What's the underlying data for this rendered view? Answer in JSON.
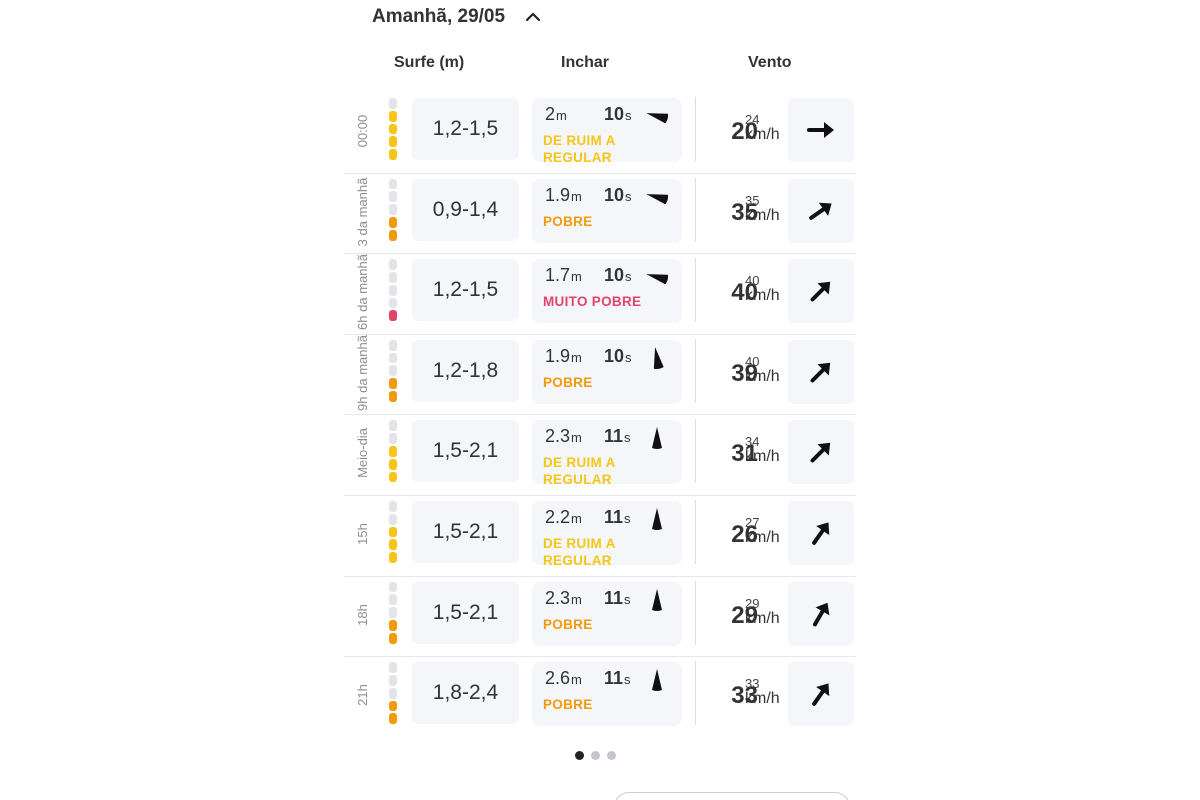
{
  "day_header": {
    "title": "Amanhã, 29/05"
  },
  "columns": {
    "surf": "Surfe (m)",
    "swell": "Inchar",
    "wind": "Vento"
  },
  "colors": {
    "fair": "#f5c518",
    "poor": "#f29a0d",
    "very_poor": "#e0456b",
    "empty": "#e2e4ea"
  },
  "rows": [
    {
      "time": "00:00",
      "meter": [
        "empty",
        "fair",
        "fair",
        "fair",
        "fair"
      ],
      "surf": "1,2-1,5",
      "swell_height": "2",
      "swell_unit": "m",
      "swell_period": "10",
      "period_unit": "s",
      "swell_dir_deg": 285,
      "quality": "DE RUIM A REGULAR",
      "quality_level": "fair",
      "wind": "20",
      "gust": "24",
      "wind_unit": "km/h",
      "wind_dir_deg": 90
    },
    {
      "time": "3 da manhã",
      "meter": [
        "empty",
        "empty",
        "empty",
        "poor",
        "poor"
      ],
      "surf": "0,9-1,4",
      "swell_height": "1.9",
      "swell_unit": "m",
      "swell_period": "10",
      "period_unit": "s",
      "swell_dir_deg": 285,
      "quality": "POBRE",
      "quality_level": "poor",
      "wind": "35",
      "gust": "35",
      "wind_unit": "km/h",
      "wind_dir_deg": 55
    },
    {
      "time": "6h da manhã",
      "meter": [
        "empty",
        "empty",
        "empty",
        "empty",
        "very_poor"
      ],
      "surf": "1,2-1,5",
      "swell_height": "1.7",
      "swell_unit": "m",
      "swell_period": "10",
      "period_unit": "s",
      "swell_dir_deg": 285,
      "quality": "MUITO POBRE",
      "quality_level": "very_poor",
      "wind": "40",
      "gust": "40",
      "wind_unit": "km/h",
      "wind_dir_deg": 45
    },
    {
      "time": "9h da manhã",
      "meter": [
        "empty",
        "empty",
        "empty",
        "poor",
        "poor"
      ],
      "surf": "1,2-1,8",
      "swell_height": "1.9",
      "swell_unit": "m",
      "swell_period": "10",
      "period_unit": "s",
      "swell_dir_deg": 350,
      "quality": "POBRE",
      "quality_level": "poor",
      "wind": "39",
      "gust": "40",
      "wind_unit": "km/h",
      "wind_dir_deg": 45
    },
    {
      "time": "Meio-dia",
      "meter": [
        "empty",
        "empty",
        "fair",
        "fair",
        "fair"
      ],
      "surf": "1,5-2,1",
      "swell_height": "2.3",
      "swell_unit": "m",
      "swell_period": "11",
      "period_unit": "s",
      "swell_dir_deg": 0,
      "quality": "DE RUIM A REGULAR",
      "quality_level": "fair",
      "wind": "31",
      "gust": "34",
      "wind_unit": "km/h",
      "wind_dir_deg": 45
    },
    {
      "time": "15h",
      "meter": [
        "empty",
        "empty",
        "fair",
        "fair",
        "fair"
      ],
      "surf": "1,5-2,1",
      "swell_height": "2.2",
      "swell_unit": "m",
      "swell_period": "11",
      "period_unit": "s",
      "swell_dir_deg": 0,
      "quality": "DE RUIM A REGULAR",
      "quality_level": "fair",
      "wind": "26",
      "gust": "27",
      "wind_unit": "km/h",
      "wind_dir_deg": 35
    },
    {
      "time": "18h",
      "meter": [
        "empty",
        "empty",
        "empty",
        "poor",
        "poor"
      ],
      "surf": "1,5-2,1",
      "swell_height": "2.3",
      "swell_unit": "m",
      "swell_period": "11",
      "period_unit": "s",
      "swell_dir_deg": 0,
      "quality": "POBRE",
      "quality_level": "poor",
      "wind": "29",
      "gust": "29",
      "wind_unit": "km/h",
      "wind_dir_deg": 30
    },
    {
      "time": "21h",
      "meter": [
        "empty",
        "empty",
        "empty",
        "poor",
        "poor"
      ],
      "surf": "1,8-2,4",
      "swell_height": "2.6",
      "swell_unit": "m",
      "swell_period": "11",
      "period_unit": "s",
      "swell_dir_deg": 0,
      "quality": "POBRE",
      "quality_level": "poor",
      "wind": "33",
      "gust": "33",
      "wind_unit": "km/h",
      "wind_dir_deg": 35
    }
  ],
  "pagination": {
    "count": 3,
    "active": 0
  }
}
